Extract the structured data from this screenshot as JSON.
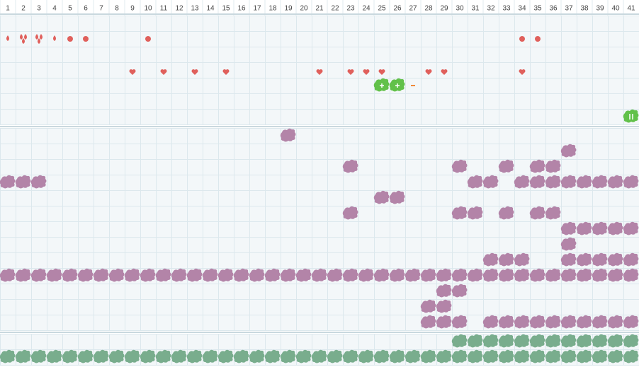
{
  "header": {
    "columns": [
      1,
      2,
      3,
      4,
      5,
      6,
      7,
      8,
      9,
      10,
      11,
      12,
      13,
      14,
      15,
      16,
      17,
      18,
      19,
      20,
      21,
      22,
      23,
      24,
      25,
      26,
      27,
      28,
      29,
      30,
      31,
      32,
      33,
      34,
      35,
      36,
      37,
      38,
      39,
      40,
      41
    ]
  },
  "sections": [
    {
      "rows": [
        ".........................................",
        "dDDdoo...o.......................oo......",
        ".........................................",
        "........h.h.h.h.....h.hhh..hh....h.......",
        "........................++-..............",
        ".........................................",
        "........................................|"
      ]
    },
    {
      "rows": [
        "..................p......................",
        "....................................p....",
        "......................p......p..p.pp.....",
        "ppp...........................pp.pppppppp",
        "........................pp...............",
        "......................p......pp.p.pp.....",
        "....................................ppppp",
        "....................................p....",
        "...............................ppp..ppppp",
        "ppppppppppppppppppppppppppppppppppppppppp",
        "............................pp...........",
        "...........................pp............",
        "...........................ppp.pppppppppp"
      ]
    },
    {
      "rows": [
        ".............................gggggggggggg",
        "ggggggggggggggggggggggggggggggggggggggggg"
      ]
    }
  ]
}
